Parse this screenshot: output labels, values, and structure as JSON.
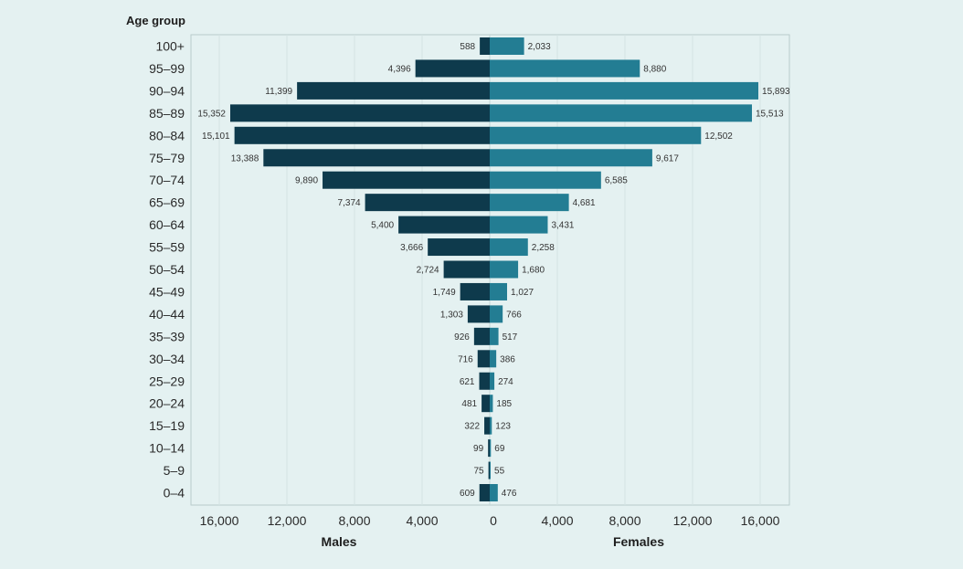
{
  "chart_data": {
    "type": "bar",
    "orientation": "horizontal",
    "subtype": "population-pyramid",
    "y_header": "Age group",
    "categories": [
      "100+",
      "95–99",
      "90–94",
      "85–89",
      "80–84",
      "75–79",
      "70–74",
      "65–69",
      "60–64",
      "55–59",
      "50–54",
      "45–49",
      "40–44",
      "35–39",
      "30–34",
      "25–29",
      "20–24",
      "15–19",
      "10–14",
      "5–9",
      "0–4"
    ],
    "series": [
      {
        "name": "Males",
        "side": "left",
        "color": "#0e3a4c",
        "values": [
          588,
          4396,
          11399,
          15352,
          15101,
          13388,
          9890,
          7374,
          5400,
          3666,
          2724,
          1749,
          1303,
          926,
          716,
          621,
          481,
          322,
          99,
          75,
          609
        ],
        "labels": [
          "588",
          "4,396",
          "11,399",
          "15,352",
          "15,101",
          "13,388",
          "9,890",
          "7,374",
          "5,400",
          "3,666",
          "2,724",
          "1,749",
          "1,303",
          "926",
          "716",
          "621",
          "481",
          "322",
          "99",
          "75",
          "609"
        ]
      },
      {
        "name": "Females",
        "side": "right",
        "color": "#237d93",
        "values": [
          2033,
          8880,
          15893,
          15513,
          12502,
          9617,
          6585,
          4681,
          3431,
          2258,
          1680,
          1027,
          766,
          517,
          386,
          274,
          185,
          123,
          69,
          55,
          476
        ],
        "labels": [
          "2,033",
          "8,880",
          "15,893",
          "15,513",
          "12,502",
          "9,617",
          "6,585",
          "4,681",
          "3,431",
          "2,258",
          "1,680",
          "1,027",
          "766",
          "517",
          "386",
          "274",
          "185",
          "123",
          "69",
          "55",
          "476"
        ]
      }
    ],
    "x_ticks": [
      16000,
      12000,
      8000,
      4000,
      0
    ],
    "x_tick_labels": [
      "16,000",
      "12,000",
      "8,000",
      "4,000",
      "0"
    ],
    "xlim": [
      0,
      18000
    ],
    "xlabel_left": "Males",
    "xlabel_right": "Females",
    "grid": true
  }
}
